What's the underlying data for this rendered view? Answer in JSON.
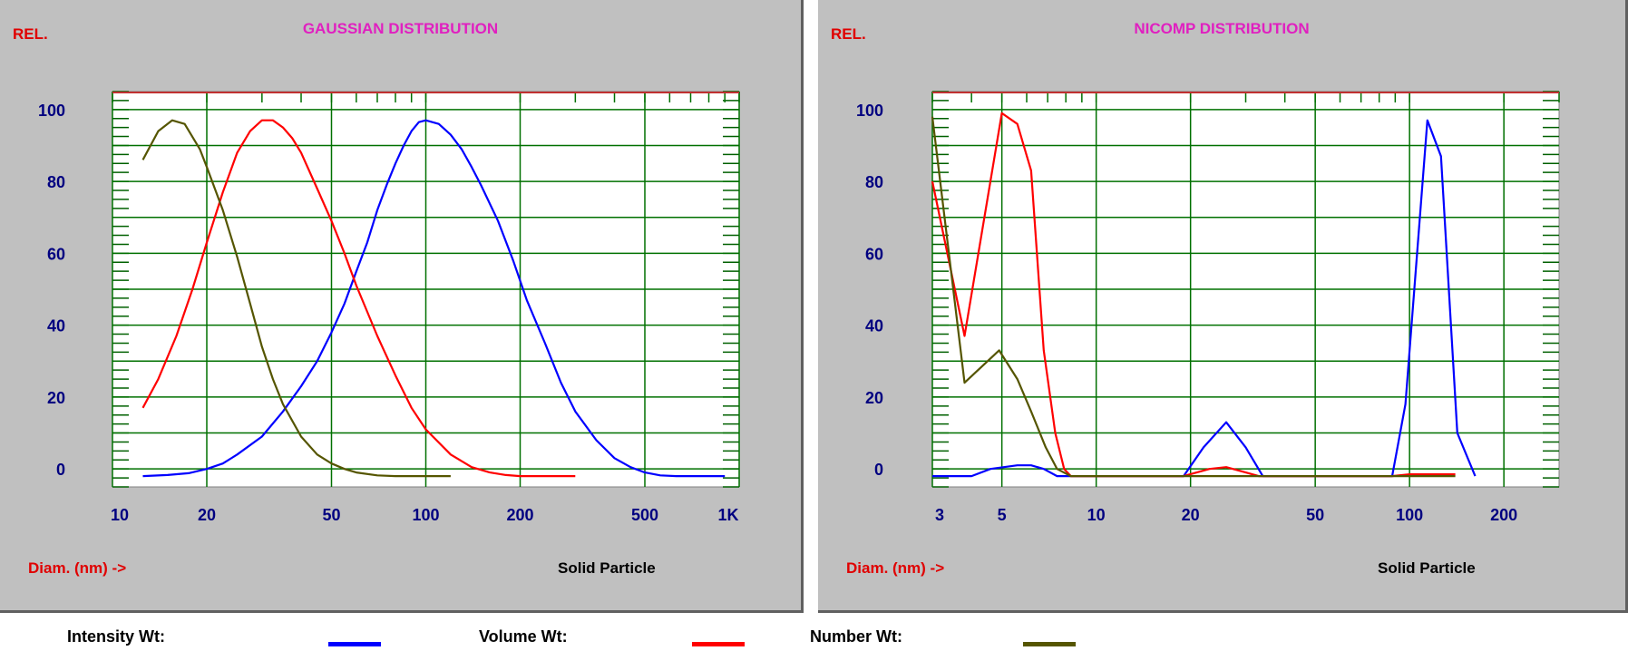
{
  "legend": {
    "items": [
      {
        "label": "Intensity Wt:",
        "color": "#0000ff"
      },
      {
        "label": "Volume Wt:",
        "color": "#ff0000"
      },
      {
        "label": "Number Wt:",
        "color": "#555500"
      }
    ]
  },
  "chart_data": [
    {
      "type": "line",
      "title": "GAUSSIAN DISTRIBUTION",
      "ylabel": "REL.",
      "xlabel": "Diam. (nm) ->",
      "note": "Solid Particle",
      "xscale": "log",
      "xlim": [
        10,
        1000
      ],
      "ylim": [
        -5,
        105
      ],
      "grid": true,
      "xticks": [
        10,
        20,
        50,
        100,
        200,
        500,
        1000
      ],
      "xticklabels": [
        "10",
        "20",
        "50",
        "100",
        "200",
        "500",
        "1K"
      ],
      "yticks": [
        0,
        20,
        40,
        60,
        80,
        100
      ],
      "yticklabels": [
        "0",
        "20",
        "40",
        "60",
        "80",
        "100"
      ],
      "series": [
        {
          "name": "Intensity Wt",
          "color": "#0000ff",
          "x": [
            12.5,
            15,
            17.5,
            20,
            22.5,
            25,
            30,
            35,
            40,
            45,
            50,
            55,
            60,
            65,
            70,
            75,
            80,
            85,
            90,
            95,
            100,
            110,
            120,
            130,
            140,
            150,
            170,
            190,
            210,
            240,
            270,
            300,
            350,
            400,
            450,
            500,
            560,
            630,
            700,
            800,
            900
          ],
          "y": [
            -2,
            -1.7,
            -1.2,
            0,
            1.5,
            4,
            9,
            16,
            23,
            30,
            38,
            46,
            55,
            63,
            72,
            79,
            85,
            90,
            94,
            96.5,
            97,
            96,
            93,
            89,
            84,
            79,
            69,
            58,
            47,
            35,
            24,
            16,
            8,
            3,
            0.5,
            -1,
            -1.8,
            -2,
            -2,
            -2,
            -2
          ]
        },
        {
          "name": "Volume Wt",
          "color": "#ff0000",
          "x": [
            12.5,
            14,
            16,
            18,
            20,
            22.5,
            25,
            27.5,
            30,
            32.5,
            35,
            37.5,
            40,
            45,
            50,
            55,
            60,
            70,
            80,
            90,
            100,
            120,
            140,
            160,
            180,
            200,
            230,
            260,
            300
          ],
          "y": [
            17,
            25,
            37,
            50,
            63,
            77,
            88,
            94,
            97,
            97,
            95,
            92,
            88,
            78,
            69,
            60,
            51,
            37,
            26,
            17,
            11,
            4,
            0.5,
            -1,
            -1.7,
            -2,
            -2,
            -2,
            -2
          ]
        },
        {
          "name": "Number Wt",
          "color": "#555500",
          "x": [
            12.5,
            14,
            15.5,
            17,
            19,
            20,
            22.5,
            25,
            27.5,
            30,
            32.5,
            35,
            40,
            45,
            50,
            55,
            60,
            70,
            80,
            90,
            100,
            120
          ],
          "y": [
            86,
            94,
            97,
            96,
            89,
            84,
            72,
            59,
            46,
            34,
            25,
            18,
            9,
            4,
            1.5,
            0,
            -1,
            -1.8,
            -2,
            -2,
            -2,
            -2
          ]
        }
      ]
    },
    {
      "type": "line",
      "title": "NICOMP DISTRIBUTION",
      "ylabel": "REL.",
      "xlabel": "Diam. (nm) ->",
      "note": "Solid Particle",
      "xscale": "log",
      "xlim": [
        3,
        300
      ],
      "ylim": [
        -5,
        105
      ],
      "grid": true,
      "xticks": [
        3,
        5,
        10,
        20,
        50,
        100,
        200
      ],
      "xticklabels": [
        "3",
        "5",
        "10",
        "20",
        "50",
        "100",
        "200"
      ],
      "yticks": [
        0,
        20,
        40,
        60,
        80,
        100
      ],
      "yticklabels": [
        "0",
        "20",
        "40",
        "60",
        "80",
        "100"
      ],
      "series": [
        {
          "name": "Intensity Wt",
          "color": "#0000ff",
          "x": [
            3,
            4,
            4.6,
            5.6,
            6.2,
            6.8,
            7.5,
            8.3,
            19,
            22,
            26,
            30,
            34,
            88,
            97,
            114,
            126,
            142,
            162
          ],
          "y": [
            -2,
            -2,
            0,
            1,
            1,
            0,
            -2,
            -2,
            -2,
            6,
            13,
            6,
            -2,
            -2,
            18,
            97,
            87,
            10,
            -2
          ]
        },
        {
          "name": "Volume Wt",
          "color": "#ff0000",
          "x": [
            3,
            3.8,
            5,
            5.6,
            6.2,
            6.8,
            7.4,
            7.9,
            8.3,
            19,
            23,
            26,
            30,
            33,
            88,
            100,
            140
          ],
          "y": [
            80,
            37,
            99,
            96,
            83,
            33,
            10,
            0,
            -2,
            -2,
            0,
            0.5,
            -1,
            -2,
            -2,
            -1.5,
            -1.5
          ]
        },
        {
          "name": "Number Wt",
          "color": "#555500",
          "x": [
            3,
            3.8,
            4.9,
            5.6,
            6.2,
            6.9,
            7.5,
            8.3,
            19,
            30,
            88,
            140
          ],
          "y": [
            98,
            24,
            33,
            25,
            16,
            6,
            0,
            -2,
            -2,
            -2,
            -2,
            -2
          ]
        }
      ]
    }
  ]
}
